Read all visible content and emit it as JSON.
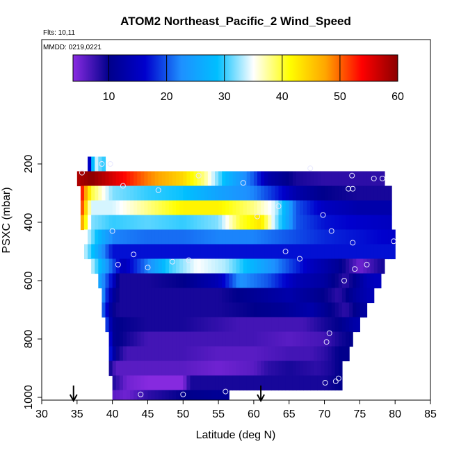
{
  "chart_data": {
    "type": "heatmap",
    "title": "ATOM2 Northeast_Pacific_2 Wind_Speed",
    "annotations": [
      "Flts: 10,11",
      "MMDD: 0219,0221"
    ],
    "xlabel": "Latitude (deg N)",
    "ylabel": "PSXC (mbar)",
    "xlim": [
      30,
      85
    ],
    "ylim": [
      1000,
      100
    ],
    "x_ticks": [
      30,
      35,
      40,
      45,
      50,
      55,
      60,
      65,
      70,
      75,
      80,
      85
    ],
    "y_ticks": [
      200,
      400,
      600,
      800,
      1000
    ],
    "colorbar": {
      "range": [
        3.8,
        60
      ],
      "ticks": [
        10,
        20,
        30,
        40,
        50,
        60
      ],
      "colors": [
        "#8a2be2",
        "#00008b",
        "#0000cd",
        "#1e90ff",
        "#00bfff",
        "#ffffff",
        "#ffff00",
        "#ffa500",
        "#ff0000",
        "#8b0000"
      ]
    },
    "levels": [
      {
        "p": 200,
        "lat": [
          [
            36.5,
            9
          ],
          [
            37.5,
            35
          ],
          [
            38.5,
            30
          ]
        ]
      },
      {
        "p": 250,
        "lat": [
          [
            35,
            58
          ],
          [
            37,
            60
          ],
          [
            40,
            56
          ],
          [
            45,
            49
          ],
          [
            50,
            44
          ],
          [
            53,
            38
          ],
          [
            56,
            28
          ],
          [
            60,
            20
          ],
          [
            62,
            13
          ],
          [
            66,
            9
          ],
          [
            70,
            8
          ],
          [
            78,
            8
          ]
        ]
      },
      {
        "p": 300,
        "lat": [
          [
            35.5,
            55
          ],
          [
            37,
            40
          ],
          [
            40,
            32
          ],
          [
            45,
            30
          ],
          [
            50,
            29
          ],
          [
            55,
            25
          ],
          [
            60,
            22
          ],
          [
            63,
            18
          ],
          [
            66,
            13
          ],
          [
            70,
            10
          ],
          [
            75,
            9
          ],
          [
            79,
            9
          ]
        ]
      },
      {
        "p": 350,
        "lat": [
          [
            35.5,
            54
          ],
          [
            37,
            34
          ],
          [
            40,
            34
          ],
          [
            45,
            38
          ],
          [
            50,
            42
          ],
          [
            55,
            42
          ],
          [
            60,
            38
          ],
          [
            63,
            34
          ],
          [
            66,
            20
          ],
          [
            70,
            15
          ],
          [
            75,
            13
          ],
          [
            79,
            13
          ]
        ]
      },
      {
        "p": 400,
        "lat": [
          [
            35.5,
            50
          ],
          [
            37,
            32
          ],
          [
            40,
            30
          ],
          [
            45,
            31
          ],
          [
            50,
            30
          ],
          [
            55,
            32
          ],
          [
            58,
            40
          ],
          [
            61,
            43
          ],
          [
            63,
            33
          ],
          [
            66,
            20
          ],
          [
            70,
            17
          ],
          [
            75,
            16
          ],
          [
            79,
            15
          ]
        ]
      },
      {
        "p": 450,
        "lat": [
          [
            36,
            36
          ],
          [
            38,
            28
          ],
          [
            40,
            22
          ],
          [
            45,
            21
          ],
          [
            50,
            21
          ],
          [
            55,
            22
          ],
          [
            60,
            22
          ],
          [
            65,
            20
          ],
          [
            70,
            18
          ],
          [
            75,
            17
          ],
          [
            79.5,
            16
          ]
        ]
      },
      {
        "p": 500,
        "lat": [
          [
            36,
            34
          ],
          [
            40,
            17
          ],
          [
            50,
            17
          ],
          [
            60,
            17
          ],
          [
            70,
            17
          ],
          [
            79.5,
            17
          ]
        ]
      },
      {
        "p": 550,
        "lat": [
          [
            37,
            34
          ],
          [
            40,
            20
          ],
          [
            41.5,
            14
          ],
          [
            45,
            22
          ],
          [
            48,
            30
          ],
          [
            52,
            35
          ],
          [
            56,
            33
          ],
          [
            60,
            27
          ],
          [
            64,
            21
          ],
          [
            68,
            15
          ],
          [
            72,
            11
          ],
          [
            75,
            5
          ],
          [
            76.5,
            7
          ],
          [
            78,
            9
          ]
        ]
      },
      {
        "p": 600,
        "lat": [
          [
            38,
            26
          ],
          [
            40,
            16
          ],
          [
            41,
            9
          ],
          [
            45,
            9
          ],
          [
            50,
            10
          ],
          [
            55,
            14
          ],
          [
            58,
            23
          ],
          [
            62,
            20
          ],
          [
            66,
            14
          ],
          [
            70,
            12
          ],
          [
            73,
            8
          ],
          [
            76,
            14
          ],
          [
            77.5,
            15
          ]
        ]
      },
      {
        "p": 650,
        "lat": [
          [
            38.5,
            24
          ],
          [
            40,
            12
          ],
          [
            41,
            9
          ],
          [
            45,
            9
          ],
          [
            50,
            9
          ],
          [
            55,
            9
          ],
          [
            60,
            11
          ],
          [
            65,
            13
          ],
          [
            70,
            10
          ],
          [
            72,
            8
          ],
          [
            74.5,
            12
          ],
          [
            76.5,
            14
          ]
        ]
      },
      {
        "p": 700,
        "lat": [
          [
            38.5,
            22
          ],
          [
            40,
            10
          ],
          [
            41,
            9
          ],
          [
            50,
            9
          ],
          [
            55,
            9
          ],
          [
            60,
            10
          ],
          [
            64,
            11
          ],
          [
            68,
            13
          ],
          [
            71,
            10
          ],
          [
            73,
            8
          ],
          [
            75.5,
            12
          ]
        ]
      },
      {
        "p": 750,
        "lat": [
          [
            39,
            21
          ],
          [
            40,
            11
          ],
          [
            41,
            10
          ],
          [
            45,
            9
          ],
          [
            50,
            9
          ],
          [
            54,
            8
          ],
          [
            58,
            7
          ],
          [
            63,
            7
          ],
          [
            67,
            7
          ],
          [
            70,
            9
          ],
          [
            72,
            10
          ],
          [
            74.5,
            13
          ]
        ]
      },
      {
        "p": 800,
        "lat": [
          [
            39.5,
            20
          ],
          [
            40,
            11
          ],
          [
            41,
            10
          ],
          [
            45,
            7
          ],
          [
            50,
            7
          ],
          [
            55,
            7
          ],
          [
            60,
            7
          ],
          [
            65,
            6
          ],
          [
            70,
            7
          ],
          [
            72,
            9
          ],
          [
            73.5,
            10
          ]
        ]
      },
      {
        "p": 850,
        "lat": [
          [
            39.5,
            19
          ],
          [
            40.5,
            10
          ],
          [
            42,
            7
          ],
          [
            50,
            7
          ],
          [
            55,
            6
          ],
          [
            60,
            6
          ],
          [
            65,
            7
          ],
          [
            68,
            7
          ],
          [
            70,
            8
          ],
          [
            72,
            10
          ],
          [
            73,
            10
          ]
        ]
      },
      {
        "p": 900,
        "lat": [
          [
            39.5,
            10
          ],
          [
            40.5,
            6
          ],
          [
            45,
            6
          ],
          [
            50,
            6
          ],
          [
            55,
            5
          ],
          [
            60,
            6
          ],
          [
            62,
            8
          ],
          [
            65,
            9
          ],
          [
            69,
            8
          ],
          [
            71,
            9
          ],
          [
            72,
            10
          ]
        ]
      },
      {
        "p": 950,
        "lat": [
          [
            40,
            9
          ],
          [
            42,
            5
          ],
          [
            45,
            4
          ],
          [
            50,
            4
          ],
          [
            51,
            9
          ],
          [
            55,
            9
          ],
          [
            60,
            9
          ],
          [
            65,
            9
          ],
          [
            70,
            9
          ],
          [
            72,
            10
          ]
        ]
      },
      {
        "p": 1000,
        "lat": [
          [
            40,
            6
          ],
          [
            42,
            5
          ],
          [
            45,
            8
          ],
          [
            50,
            10
          ],
          [
            55,
            11
          ],
          [
            56,
            11
          ]
        ]
      }
    ],
    "flight_points": [
      [
        35.7,
        230
      ],
      [
        38.5,
        200
      ],
      [
        39.7,
        200
      ],
      [
        40,
        430
      ],
      [
        40.8,
        545
      ],
      [
        41.5,
        275
      ],
      [
        43,
        510
      ],
      [
        44,
        990
      ],
      [
        45,
        555
      ],
      [
        46.5,
        290
      ],
      [
        48.5,
        535
      ],
      [
        50,
        990
      ],
      [
        50.8,
        530
      ],
      [
        52.2,
        240
      ],
      [
        56,
        980
      ],
      [
        58.5,
        265
      ],
      [
        60.5,
        380
      ],
      [
        63.5,
        345
      ],
      [
        64.5,
        500
      ],
      [
        66.5,
        525
      ],
      [
        68,
        215
      ],
      [
        69.8,
        375
      ],
      [
        70.1,
        950
      ],
      [
        70.3,
        810
      ],
      [
        70.7,
        780
      ],
      [
        71,
        430
      ],
      [
        71.6,
        945
      ],
      [
        72,
        935
      ],
      [
        72.8,
        600
      ],
      [
        73.4,
        285
      ],
      [
        73.9,
        240
      ],
      [
        74,
        285
      ],
      [
        74,
        470
      ],
      [
        74.3,
        560
      ],
      [
        76,
        545
      ],
      [
        77,
        250
      ],
      [
        78.2,
        250
      ],
      [
        79.8,
        465
      ]
    ],
    "arrows_lat": [
      34.5,
      61
    ]
  }
}
